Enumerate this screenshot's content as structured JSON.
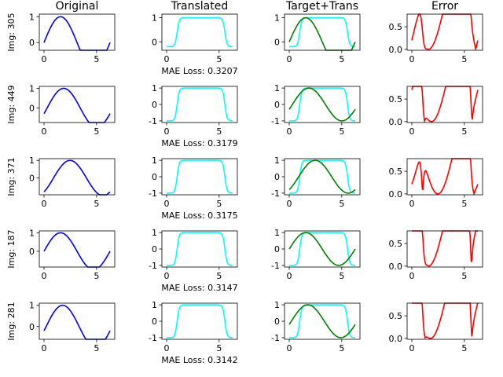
{
  "chart_data": {
    "type": "line",
    "grid": false,
    "column_titles": [
      "Original",
      "Translated",
      "Target+Trans",
      "Error"
    ],
    "colors": {
      "original": "#0000ff",
      "translated": "#00ffff",
      "target": "#008000",
      "error": "#ff0000"
    },
    "x_range": [
      0,
      6.2832
    ],
    "rows": [
      {
        "label": "Img: 305",
        "loss": "MAE Loss: 0.3207",
        "original": {
          "x0": 0.0,
          "yticks": [
            0,
            1
          ],
          "ylim": [
            -0.3,
            1.1
          ]
        },
        "translated": {
          "yticks": [
            0,
            1
          ],
          "ylim": [
            -0.35,
            1.15
          ]
        },
        "target_trans": {
          "x0": 0.0,
          "yticks": [
            0,
            1
          ],
          "ylim": [
            -0.35,
            1.15
          ]
        },
        "error": {
          "yticks": [
            0.0,
            0.5
          ],
          "ylim": [
            -0.02,
            0.78
          ]
        }
      },
      {
        "label": "Img: 449",
        "loss": "MAE Loss: 0.3179",
        "original": {
          "x0": 0.3,
          "yticks": [
            0,
            1
          ],
          "ylim": [
            -0.75,
            1.1
          ]
        },
        "translated": {
          "yticks": [
            -1,
            0,
            1
          ],
          "ylim": [
            -1.1,
            1.1
          ]
        },
        "target_trans": {
          "x0": 0.3,
          "yticks": [
            -1,
            0,
            1
          ],
          "ylim": [
            -1.1,
            1.1
          ]
        },
        "error": {
          "yticks": [
            0.0,
            0.5
          ],
          "ylim": [
            -0.02,
            0.78
          ]
        }
      },
      {
        "label": "Img: 371",
        "loss": "MAE Loss: 0.3175",
        "original": {
          "x0": 0.9,
          "yticks": [
            0,
            1
          ],
          "ylim": [
            -0.95,
            1.1
          ]
        },
        "translated": {
          "yticks": [
            -1,
            0,
            1
          ],
          "ylim": [
            -1.1,
            1.1
          ]
        },
        "target_trans": {
          "x0": 0.9,
          "yticks": [
            -1,
            0,
            1
          ],
          "ylim": [
            -1.1,
            1.1
          ]
        },
        "error": {
          "yticks": [
            0.0,
            0.5
          ],
          "ylim": [
            -0.02,
            0.78
          ]
        }
      },
      {
        "label": "Img: 187",
        "loss": "MAE Loss: 0.3147",
        "original": {
          "x0": 0.0,
          "yticks": [
            0,
            1
          ],
          "ylim": [
            -0.85,
            1.1
          ]
        },
        "translated": {
          "yticks": [
            -1,
            0,
            1
          ],
          "ylim": [
            -1.1,
            1.1
          ]
        },
        "target_trans": {
          "x0": 0.0,
          "yticks": [
            -1,
            0,
            1
          ],
          "ylim": [
            -1.1,
            1.1
          ]
        },
        "error": {
          "yticks": [
            0.0,
            0.5
          ],
          "ylim": [
            -0.02,
            0.78
          ]
        }
      },
      {
        "label": "Img: 281",
        "loss": "MAE Loss: 0.3142",
        "original": {
          "x0": 0.2,
          "yticks": [
            0,
            1
          ],
          "ylim": [
            -0.6,
            1.1
          ]
        },
        "translated": {
          "yticks": [
            -1,
            0,
            1
          ],
          "ylim": [
            -1.1,
            1.1
          ]
        },
        "target_trans": {
          "x0": 0.2,
          "yticks": [
            -1,
            0,
            1
          ],
          "ylim": [
            -1.1,
            1.1
          ]
        },
        "error": {
          "yticks": [
            0.0,
            0.5
          ],
          "ylim": [
            -0.02,
            0.78
          ]
        }
      }
    ],
    "xticks": [
      0,
      5
    ]
  }
}
